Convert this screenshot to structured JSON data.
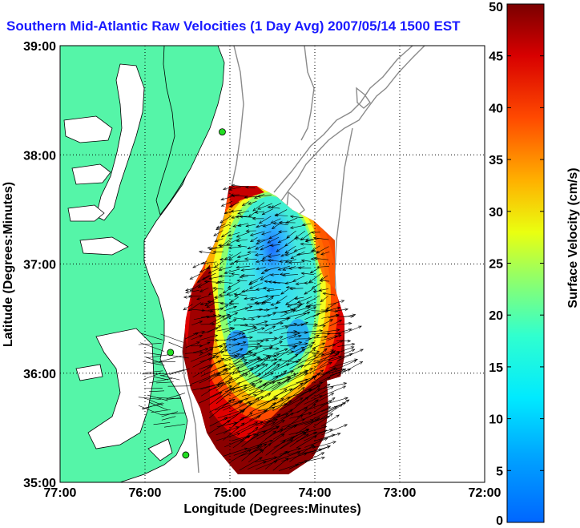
{
  "chart_data": {
    "type": "heatmap",
    "title": "Southern Mid-Atlantic Raw Velocities (1 Day Avg) 2007/05/14 1500 EST",
    "xlabel": "Longitude (Degrees:Minutes)",
    "ylabel": "Latitude (Degrees:Minutes)",
    "x_ticks": [
      "77:00",
      "76:00",
      "75:00",
      "74:00",
      "73:00",
      "72:00"
    ],
    "y_ticks": [
      "39:00",
      "38:00",
      "37:00",
      "36:00",
      "35:00"
    ],
    "xlim": [
      -77,
      -72
    ],
    "ylim": [
      35,
      39
    ],
    "grid": true,
    "colorbar": {
      "label": "Surface Velocity (cm/s)",
      "range": [
        0,
        50
      ],
      "ticks": [
        "0",
        "5",
        "10",
        "15",
        "20",
        "25",
        "30",
        "35",
        "40",
        "45",
        "50"
      ],
      "colormap": "jet"
    },
    "land_color": "#55f5a8",
    "station_color": "#22dd22",
    "stations": [
      {
        "lon": -75.09,
        "lat": 38.21
      },
      {
        "lon": -75.7,
        "lat": 36.19
      },
      {
        "lon": -75.52,
        "lat": 35.25
      }
    ],
    "regions": [
      {
        "description": "slow core",
        "lon": -74.6,
        "lat": 37.05,
        "speed_cm_s": 6
      },
      {
        "description": "inner field",
        "lon": -74.8,
        "lat": 36.6,
        "speed_cm_s": 14
      },
      {
        "description": "southern jet",
        "lon": -74.3,
        "lat": 35.7,
        "speed_cm_s": 50
      },
      {
        "description": "western coastal band",
        "lon": -75.4,
        "lat": 36.2,
        "speed_cm_s": 46
      },
      {
        "description": "northern edge",
        "lon": -74.9,
        "lat": 37.55,
        "speed_cm_s": 42
      }
    ]
  }
}
